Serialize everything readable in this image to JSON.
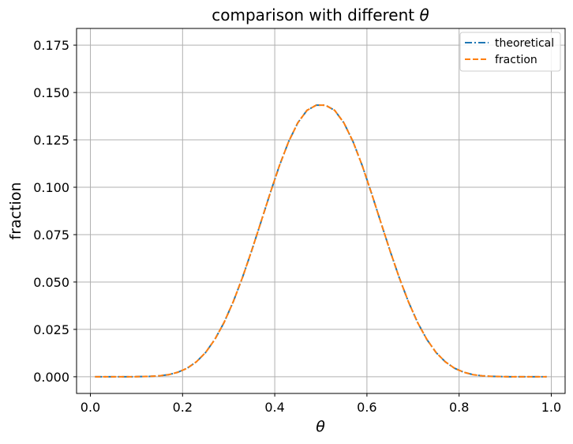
{
  "chart_data": {
    "type": "line",
    "title_text": "comparison with different ",
    "title_symbol": "θ",
    "xlabel": "θ",
    "ylabel": "fraction",
    "xlim": [
      -0.03,
      1.03
    ],
    "ylim": [
      -0.0088,
      0.1838
    ],
    "x_ticks": [
      0.0,
      0.2,
      0.4,
      0.6,
      0.8,
      1.0
    ],
    "x_tick_labels": [
      "0.0",
      "0.2",
      "0.4",
      "0.6",
      "0.8",
      "1.0"
    ],
    "y_ticks": [
      0.0,
      0.025,
      0.05,
      0.075,
      0.1,
      0.125,
      0.15,
      0.175
    ],
    "y_tick_labels": [
      "0.000",
      "0.025",
      "0.050",
      "0.075",
      "0.100",
      "0.125",
      "0.150",
      "0.175"
    ],
    "grid": true,
    "legend_position": "top-right",
    "x": [
      0.01,
      0.03,
      0.05,
      0.07,
      0.09,
      0.11,
      0.13,
      0.15,
      0.17,
      0.19,
      0.21,
      0.23,
      0.25,
      0.27,
      0.29,
      0.31,
      0.33,
      0.35,
      0.37,
      0.39,
      0.41,
      0.43,
      0.45,
      0.47,
      0.49,
      0.51,
      0.53,
      0.55,
      0.57,
      0.59,
      0.61,
      0.63,
      0.65,
      0.67,
      0.69,
      0.71,
      0.73,
      0.75,
      0.77,
      0.79,
      0.81,
      0.83,
      0.85,
      0.87,
      0.89,
      0.91,
      0.93,
      0.95,
      0.97,
      0.99
    ],
    "series": [
      {
        "name": "theoretical",
        "color": "#1f77b4",
        "dash": "dashdot",
        "values": [
          0.0,
          0.0,
          0.0,
          0.0,
          0.0,
          0.0001,
          0.0002,
          0.0005,
          0.0011,
          0.0024,
          0.0045,
          0.0079,
          0.0128,
          0.0197,
          0.0286,
          0.0396,
          0.0524,
          0.0666,
          0.0816,
          0.0968,
          0.1113,
          0.124,
          0.134,
          0.1406,
          0.1433,
          0.1433,
          0.1406,
          0.134,
          0.124,
          0.1113,
          0.0968,
          0.0816,
          0.0666,
          0.0524,
          0.0396,
          0.0286,
          0.0197,
          0.0128,
          0.0079,
          0.0045,
          0.0024,
          0.0011,
          0.0005,
          0.0002,
          0.0001,
          0.0,
          0.0,
          0.0,
          0.0,
          0.0
        ]
      },
      {
        "name": "fraction",
        "color": "#ff7f0e",
        "dash": "dashed",
        "values": [
          0.0,
          0.0,
          0.0,
          0.0,
          0.0,
          0.0001,
          0.0002,
          0.0005,
          0.0011,
          0.0024,
          0.0045,
          0.0079,
          0.0128,
          0.0197,
          0.0286,
          0.0396,
          0.0524,
          0.0666,
          0.0816,
          0.0968,
          0.1113,
          0.124,
          0.134,
          0.1406,
          0.1433,
          0.1433,
          0.1406,
          0.134,
          0.124,
          0.1113,
          0.0968,
          0.0816,
          0.0666,
          0.0524,
          0.0396,
          0.0286,
          0.0197,
          0.0128,
          0.0079,
          0.0045,
          0.0024,
          0.0011,
          0.0005,
          0.0002,
          0.0001,
          0.0,
          0.0,
          0.0,
          0.0,
          0.0
        ]
      }
    ]
  }
}
